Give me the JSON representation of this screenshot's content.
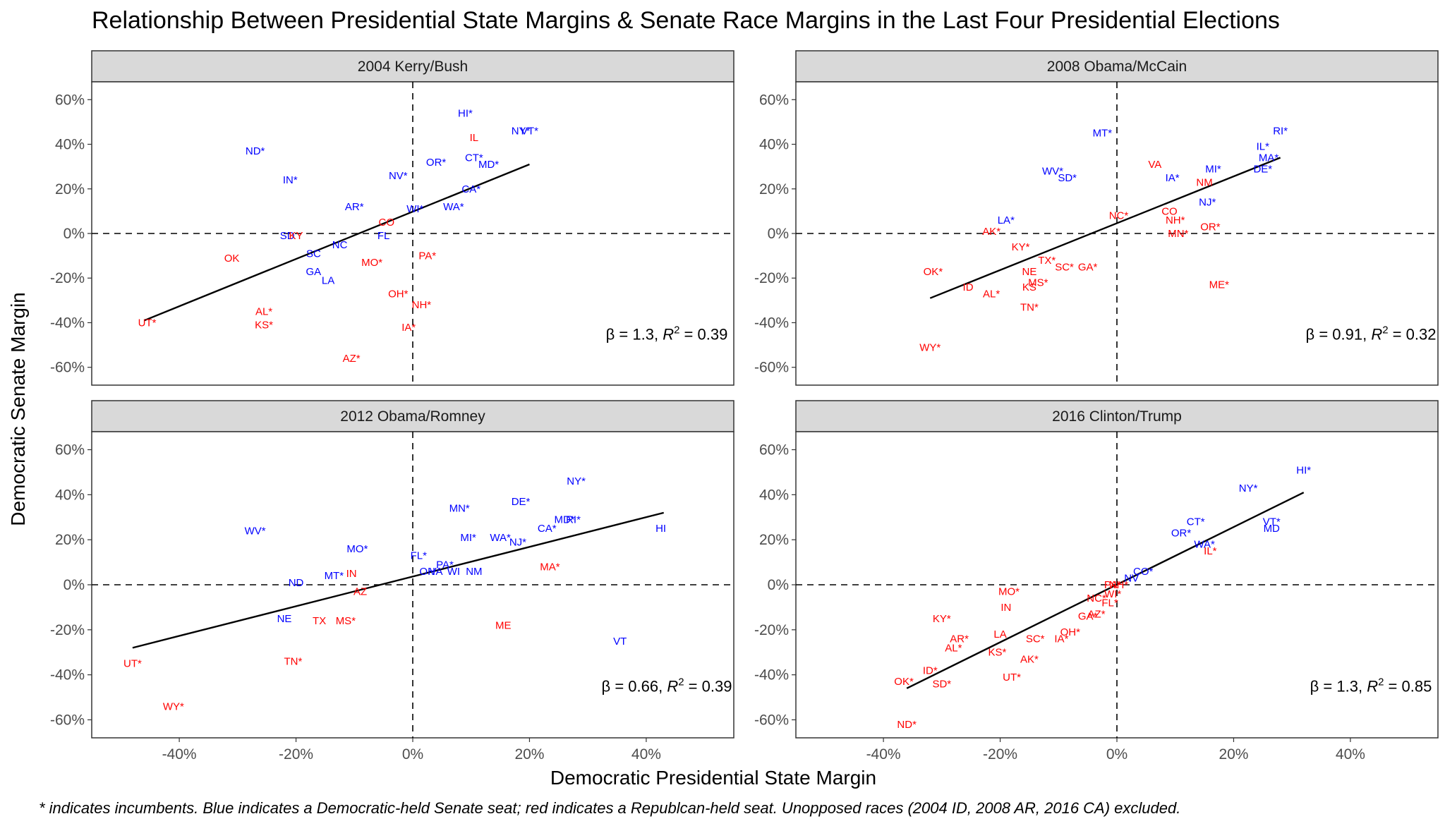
{
  "title": "Relationship Between Presidential State Margins & Senate Race Margins in the Last Four Presidential Elections",
  "xlabel": "Democratic Presidential State Margin",
  "ylabel": "Democratic Senate Margin",
  "caption": "* indicates incumbents. Blue indicates a Democratic-held Senate seat; red indicates a Republcan-held seat. Unopposed races (2004 ID, 2008 AR, 2016 CA) excluded.",
  "colors": {
    "dem": "#0000ff",
    "rep": "#ff0000",
    "strip_bg": "#d9d9d9",
    "panel_border": "#333333"
  },
  "chart_data": {
    "type": "scatter",
    "xlim": [
      -55,
      55
    ],
    "ylim": [
      -68,
      68
    ],
    "x_ticks": [
      -40,
      -20,
      0,
      20,
      40
    ],
    "x_tick_labels": [
      "-40%",
      "-20%",
      "0%",
      "20%",
      "40%"
    ],
    "y_ticks": [
      -60,
      -40,
      -20,
      0,
      20,
      40,
      60
    ],
    "y_tick_labels": [
      "-60%",
      "-40%",
      "-20%",
      "0%",
      "20%",
      "40%",
      "60%"
    ],
    "grid": false,
    "panels": [
      {
        "name": "2004 Kerry/Bush",
        "beta": "1.3",
        "r2": "0.39",
        "fit": {
          "x0": -46,
          "x1": 20,
          "y0": -39,
          "y1": 31
        },
        "points": [
          {
            "label": "HI*",
            "x": 9,
            "y": 54,
            "party": "D"
          },
          {
            "label": "IL",
            "x": 10.5,
            "y": 43,
            "party": "R"
          },
          {
            "label": "NY*",
            "x": 18.5,
            "y": 46,
            "party": "D"
          },
          {
            "label": "VT*",
            "x": 20,
            "y": 46,
            "party": "D"
          },
          {
            "label": "ND*",
            "x": -27,
            "y": 37,
            "party": "D"
          },
          {
            "label": "CT*",
            "x": 10.5,
            "y": 34,
            "party": "D"
          },
          {
            "label": "OR*",
            "x": 4,
            "y": 32,
            "party": "D"
          },
          {
            "label": "MD*",
            "x": 13,
            "y": 31,
            "party": "D"
          },
          {
            "label": "NV*",
            "x": -2.5,
            "y": 26,
            "party": "D"
          },
          {
            "label": "IN*",
            "x": -21,
            "y": 24,
            "party": "D"
          },
          {
            "label": "CA*",
            "x": 10,
            "y": 20,
            "party": "D"
          },
          {
            "label": "WA*",
            "x": 7,
            "y": 12,
            "party": "D"
          },
          {
            "label": "AR*",
            "x": -10,
            "y": 12,
            "party": "D"
          },
          {
            "label": "WI*",
            "x": 0.4,
            "y": 11,
            "party": "D"
          },
          {
            "label": "CO",
            "x": -4.5,
            "y": 5,
            "party": "R"
          },
          {
            "label": "SD",
            "x": -21.5,
            "y": -1,
            "party": "D"
          },
          {
            "label": "KY",
            "x": -20,
            "y": -1,
            "party": "R"
          },
          {
            "label": "FL",
            "x": -5,
            "y": -1,
            "party": "D"
          },
          {
            "label": "NC",
            "x": -12.5,
            "y": -5,
            "party": "D"
          },
          {
            "label": "SC",
            "x": -17,
            "y": -9,
            "party": "D"
          },
          {
            "label": "OK",
            "x": -31,
            "y": -11,
            "party": "R"
          },
          {
            "label": "PA*",
            "x": 2.5,
            "y": -10,
            "party": "R"
          },
          {
            "label": "MO*",
            "x": -7,
            "y": -13,
            "party": "R"
          },
          {
            "label": "GA",
            "x": -17,
            "y": -17,
            "party": "D"
          },
          {
            "label": "LA",
            "x": -14.5,
            "y": -21,
            "party": "D"
          },
          {
            "label": "OH*",
            "x": -2.5,
            "y": -27,
            "party": "R"
          },
          {
            "label": "NH*",
            "x": 1.5,
            "y": -32,
            "party": "R"
          },
          {
            "label": "AL*",
            "x": -25.5,
            "y": -35,
            "party": "R"
          },
          {
            "label": "KS*",
            "x": -25.5,
            "y": -41,
            "party": "R"
          },
          {
            "label": "UT*",
            "x": -45.5,
            "y": -40,
            "party": "R"
          },
          {
            "label": "IA*",
            "x": -0.7,
            "y": -42,
            "party": "R"
          },
          {
            "label": "AZ*",
            "x": -10.5,
            "y": -56,
            "party": "R"
          }
        ]
      },
      {
        "name": "2008 Obama/McCain",
        "beta": "0.91",
        "r2": "0.32",
        "fit": {
          "x0": -32,
          "x1": 28,
          "y0": -29,
          "y1": 34
        },
        "points": [
          {
            "label": "RI*",
            "x": 28,
            "y": 46,
            "party": "D"
          },
          {
            "label": "MT*",
            "x": -2.5,
            "y": 45,
            "party": "D"
          },
          {
            "label": "IL*",
            "x": 25,
            "y": 39,
            "party": "D"
          },
          {
            "label": "MA*",
            "x": 26,
            "y": 34,
            "party": "D"
          },
          {
            "label": "VA",
            "x": 6.5,
            "y": 31,
            "party": "R"
          },
          {
            "label": "MI*",
            "x": 16.5,
            "y": 29,
            "party": "D"
          },
          {
            "label": "DE*",
            "x": 25,
            "y": 29,
            "party": "D"
          },
          {
            "label": "WV*",
            "x": -11,
            "y": 28,
            "party": "D"
          },
          {
            "label": "SD*",
            "x": -8.5,
            "y": 25,
            "party": "D"
          },
          {
            "label": "IA*",
            "x": 9.5,
            "y": 25,
            "party": "D"
          },
          {
            "label": "NM",
            "x": 15,
            "y": 23,
            "party": "R"
          },
          {
            "label": "NJ*",
            "x": 15.5,
            "y": 14,
            "party": "D"
          },
          {
            "label": "CO",
            "x": 9,
            "y": 10,
            "party": "R"
          },
          {
            "label": "NC*",
            "x": 0.3,
            "y": 8,
            "party": "R"
          },
          {
            "label": "NH*",
            "x": 10,
            "y": 6,
            "party": "R"
          },
          {
            "label": "LA*",
            "x": -19,
            "y": 6,
            "party": "D"
          },
          {
            "label": "OR*",
            "x": 16,
            "y": 3,
            "party": "R"
          },
          {
            "label": "AK*",
            "x": -21.5,
            "y": 1,
            "party": "R"
          },
          {
            "label": "MN*",
            "x": 10.5,
            "y": 0,
            "party": "R"
          },
          {
            "label": "KY*",
            "x": -16.5,
            "y": -6,
            "party": "R"
          },
          {
            "label": "TX*",
            "x": -12,
            "y": -12,
            "party": "R"
          },
          {
            "label": "SC*",
            "x": -9,
            "y": -15,
            "party": "R"
          },
          {
            "label": "GA*",
            "x": -5,
            "y": -15,
            "party": "R"
          },
          {
            "label": "NE",
            "x": -15,
            "y": -17,
            "party": "R"
          },
          {
            "label": "OK*",
            "x": -31.5,
            "y": -17,
            "party": "R"
          },
          {
            "label": "MS*",
            "x": -13.5,
            "y": -22,
            "party": "R"
          },
          {
            "label": "KS",
            "x": -15,
            "y": -24,
            "party": "R"
          },
          {
            "label": "ID",
            "x": -25.5,
            "y": -24,
            "party": "R"
          },
          {
            "label": "ME*",
            "x": 17.5,
            "y": -23,
            "party": "R"
          },
          {
            "label": "AL*",
            "x": -21.5,
            "y": -27,
            "party": "R"
          },
          {
            "label": "TN*",
            "x": -15,
            "y": -33,
            "party": "R"
          },
          {
            "label": "WY*",
            "x": -32,
            "y": -51,
            "party": "R"
          }
        ]
      },
      {
        "name": "2012 Obama/Romney",
        "beta": "0.66",
        "r2": "0.39",
        "fit": {
          "x0": -48,
          "x1": 43,
          "y0": -28,
          "y1": 32
        },
        "points": [
          {
            "label": "NY*",
            "x": 28,
            "y": 46,
            "party": "D"
          },
          {
            "label": "DE*",
            "x": 18.5,
            "y": 37,
            "party": "D"
          },
          {
            "label": "MN*",
            "x": 8,
            "y": 34,
            "party": "D"
          },
          {
            "label": "MD*",
            "x": 26,
            "y": 29,
            "party": "D"
          },
          {
            "label": "RI*",
            "x": 27.5,
            "y": 29,
            "party": "D"
          },
          {
            "label": "CA*",
            "x": 23,
            "y": 25,
            "party": "D"
          },
          {
            "label": "HI",
            "x": 42.5,
            "y": 25,
            "party": "D"
          },
          {
            "label": "WV*",
            "x": -27,
            "y": 24,
            "party": "D"
          },
          {
            "label": "MI*",
            "x": 9.5,
            "y": 21,
            "party": "D"
          },
          {
            "label": "WA*",
            "x": 15,
            "y": 21,
            "party": "D"
          },
          {
            "label": "NJ*",
            "x": 18,
            "y": 19,
            "party": "D"
          },
          {
            "label": "MO*",
            "x": -9.5,
            "y": 16,
            "party": "D"
          },
          {
            "label": "FL*",
            "x": 1,
            "y": 13,
            "party": "D"
          },
          {
            "label": "PA*",
            "x": 5.5,
            "y": 9,
            "party": "D"
          },
          {
            "label": "MA*",
            "x": 23.5,
            "y": 8,
            "party": "R"
          },
          {
            "label": "OH",
            "x": 2.5,
            "y": 6,
            "party": "D"
          },
          {
            "label": "VA",
            "x": 4,
            "y": 6,
            "party": "D"
          },
          {
            "label": "WI",
            "x": 7,
            "y": 6,
            "party": "D"
          },
          {
            "label": "NM",
            "x": 10.5,
            "y": 6,
            "party": "D"
          },
          {
            "label": "IN",
            "x": -10.5,
            "y": 5,
            "party": "R"
          },
          {
            "label": "MT*",
            "x": -13.5,
            "y": 4,
            "party": "D"
          },
          {
            "label": "ND",
            "x": -20,
            "y": 1,
            "party": "D"
          },
          {
            "label": "AZ",
            "x": -9,
            "y": -3,
            "party": "R"
          },
          {
            "label": "NE",
            "x": -22,
            "y": -15,
            "party": "D"
          },
          {
            "label": "TX",
            "x": -16,
            "y": -16,
            "party": "R"
          },
          {
            "label": "MS*",
            "x": -11.5,
            "y": -16,
            "party": "R"
          },
          {
            "label": "ME",
            "x": 15.5,
            "y": -18,
            "party": "R"
          },
          {
            "label": "VT",
            "x": 35.5,
            "y": -25,
            "party": "D"
          },
          {
            "label": "TN*",
            "x": -20.5,
            "y": -34,
            "party": "R"
          },
          {
            "label": "UT*",
            "x": -48,
            "y": -35,
            "party": "R"
          },
          {
            "label": "WY*",
            "x": -41,
            "y": -54,
            "party": "R"
          }
        ]
      },
      {
        "name": "2016 Clinton/Trump",
        "beta": "1.3",
        "r2": "0.85",
        "fit": {
          "x0": -36,
          "x1": 32,
          "y0": -46,
          "y1": 41
        },
        "points": [
          {
            "label": "HI*",
            "x": 32,
            "y": 51,
            "party": "D"
          },
          {
            "label": "NY*",
            "x": 22.5,
            "y": 43,
            "party": "D"
          },
          {
            "label": "VT*",
            "x": 26.5,
            "y": 28,
            "party": "D"
          },
          {
            "label": "CT*",
            "x": 13.5,
            "y": 28,
            "party": "D"
          },
          {
            "label": "MD",
            "x": 26.5,
            "y": 25,
            "party": "D"
          },
          {
            "label": "OR*",
            "x": 11,
            "y": 23,
            "party": "D"
          },
          {
            "label": "WA*",
            "x": 15,
            "y": 18,
            "party": "D"
          },
          {
            "label": "IL*",
            "x": 16,
            "y": 15,
            "party": "R"
          },
          {
            "label": "CO*",
            "x": 4.5,
            "y": 6,
            "party": "D"
          },
          {
            "label": "NV",
            "x": 2.5,
            "y": 3,
            "party": "D"
          },
          {
            "label": "PA*",
            "x": -0.7,
            "y": 0,
            "party": "R"
          },
          {
            "label": "NH*",
            "x": 0.3,
            "y": 0,
            "party": "R"
          },
          {
            "label": "MO*",
            "x": -18.5,
            "y": -3,
            "party": "R"
          },
          {
            "label": "NC*",
            "x": -3.5,
            "y": -6,
            "party": "R"
          },
          {
            "label": "WI*",
            "x": -0.7,
            "y": -4,
            "party": "R"
          },
          {
            "label": "FL*",
            "x": -1.2,
            "y": -8,
            "party": "R"
          },
          {
            "label": "IN",
            "x": -19,
            "y": -10,
            "party": "R"
          },
          {
            "label": "AZ*",
            "x": -3.5,
            "y": -13,
            "party": "R"
          },
          {
            "label": "GA*",
            "x": -5,
            "y": -14,
            "party": "R"
          },
          {
            "label": "KY*",
            "x": -30,
            "y": -15,
            "party": "R"
          },
          {
            "label": "OH*",
            "x": -8,
            "y": -21,
            "party": "R"
          },
          {
            "label": "LA",
            "x": -20,
            "y": -22,
            "party": "R"
          },
          {
            "label": "AR*",
            "x": -27,
            "y": -24,
            "party": "R"
          },
          {
            "label": "SC*",
            "x": -14,
            "y": -24,
            "party": "R"
          },
          {
            "label": "IA*",
            "x": -9.5,
            "y": -24,
            "party": "R"
          },
          {
            "label": "AL*",
            "x": -28,
            "y": -28,
            "party": "R"
          },
          {
            "label": "KS*",
            "x": -20.5,
            "y": -30,
            "party": "R"
          },
          {
            "label": "AK*",
            "x": -15,
            "y": -33,
            "party": "R"
          },
          {
            "label": "ID*",
            "x": -32,
            "y": -38,
            "party": "R"
          },
          {
            "label": "UT*",
            "x": -18,
            "y": -41,
            "party": "R"
          },
          {
            "label": "OK*",
            "x": -36.5,
            "y": -43,
            "party": "R"
          },
          {
            "label": "SD*",
            "x": -30,
            "y": -44,
            "party": "R"
          },
          {
            "label": "ND*",
            "x": -36,
            "y": -62,
            "party": "R"
          }
        ]
      }
    ]
  }
}
